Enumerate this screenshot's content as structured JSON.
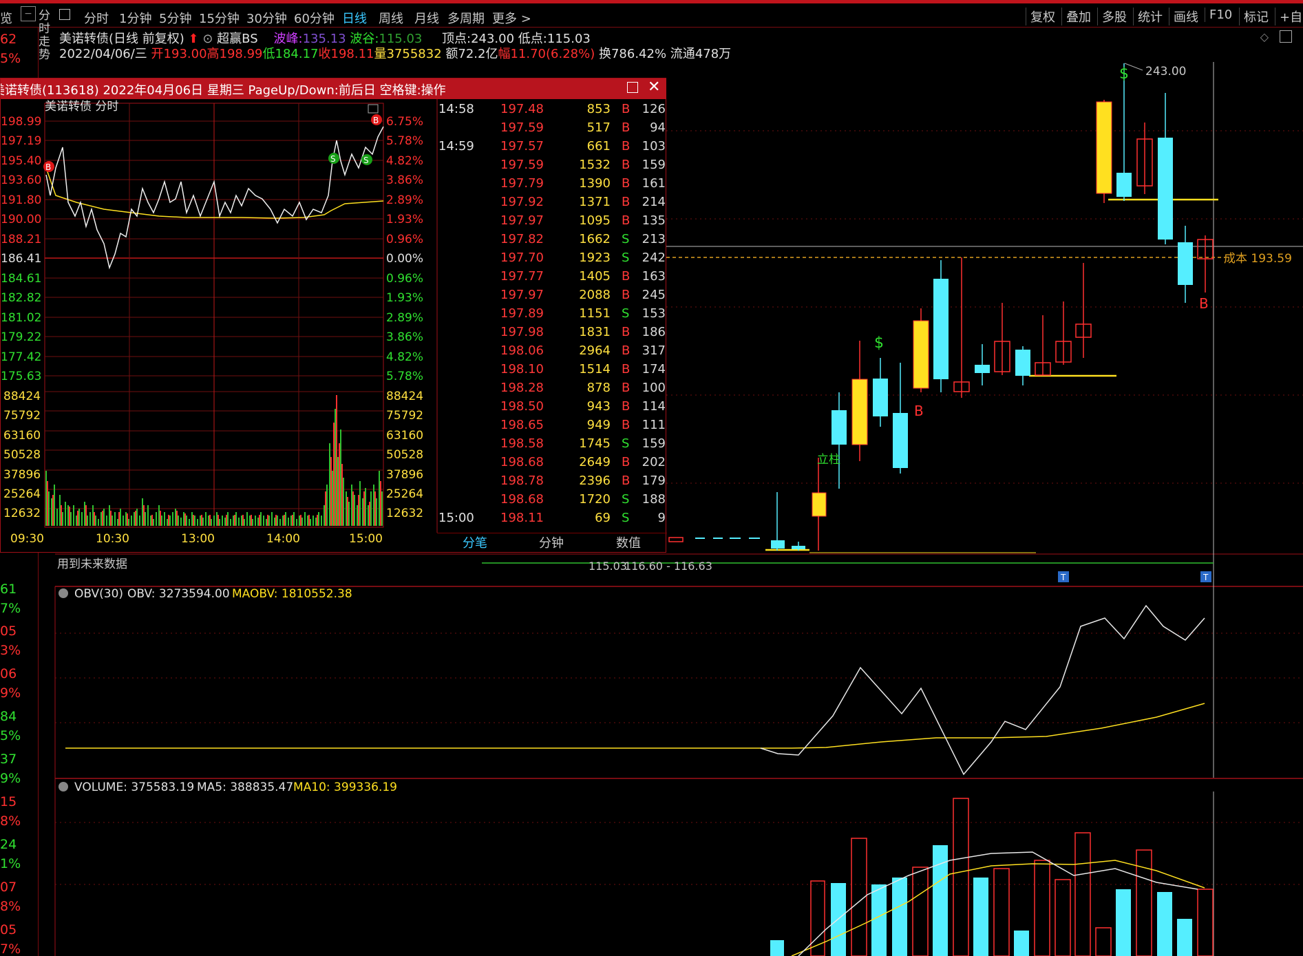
{
  "colors": {
    "accent": "#c0141c",
    "up": "#ff3030",
    "down": "#30e030",
    "cyan": "#3ac8ff",
    "yellow": "#ffe040",
    "bg": "#000000"
  },
  "toolbar": {
    "left_stub": "览",
    "side_label": "分时走势",
    "items": [
      "分时",
      "1分钟",
      "5分钟",
      "15分钟",
      "30分钟",
      "60分钟",
      "日线",
      "周线",
      "月线",
      "多周期",
      "更多 >"
    ],
    "active_item": "日线",
    "right_items": [
      "复权",
      "叠加",
      "多股",
      "统计",
      "画线",
      "F10",
      "标记",
      "+自选"
    ]
  },
  "left_strip": {
    "values": [
      "62",
      "5%",
      "61",
      "7%",
      "05",
      "3%",
      "06",
      "9%",
      "84",
      "5%",
      "37",
      "9%",
      "15",
      "8%",
      "24",
      "1%",
      "07",
      "8%",
      "05",
      "7%"
    ]
  },
  "header": {
    "name": "美诺转债(日线 前复权)",
    "indicator": "超赢BS",
    "peak_label": "波峰:",
    "peak_value": "135.13",
    "trough_label": "波谷:",
    "trough_value": "115.03",
    "top_label": "顶点:",
    "top_value": "243.00",
    "low_label": "低点:",
    "low_value": "115.03",
    "date": "2022/04/06/三",
    "open": "开193.00",
    "high": "高198.99",
    "low": "低184.17",
    "close": "收198.11",
    "volume": "量3755832",
    "amount": "额72.2亿",
    "change": "幅11.70(6.28%)",
    "turnover": "换786.42%",
    "float": "流通478万"
  },
  "kline": {
    "peak_label": "243.00",
    "cost_label": "成本 193.59",
    "low_label": "115.03",
    "range_label": "116.60 - 116.63",
    "future_note": "用到未来数据",
    "markers": [
      "$",
      "$",
      "B",
      "B",
      "立柱"
    ]
  },
  "obv_panel": {
    "title": "OBV(30)",
    "obv": "OBV: 3273594.00",
    "maobv": "MAOBV: 1810552.38"
  },
  "volume_panel": {
    "title": "VOLUME: 375583.19",
    "ma5": "MA5: 388835.47",
    "ma10": "MA10: 399336.19"
  },
  "popup": {
    "title": "美诺转债(113618) 2022年04月06日 星期三 PageUp/Down:前后日 空格键:操作",
    "chart_title": "美诺转债 分时",
    "price_labels": [
      "198.99",
      "197.19",
      "195.40",
      "193.60",
      "191.80",
      "190.00",
      "188.21",
      "186.41",
      "184.61",
      "182.82",
      "181.02",
      "179.22",
      "177.42",
      "175.63"
    ],
    "pct_labels": [
      "6.75%",
      "5.78%",
      "4.82%",
      "3.86%",
      "2.89%",
      "1.93%",
      "0.96%",
      "0.00%",
      "0.96%",
      "1.93%",
      "2.89%",
      "3.86%",
      "4.82%",
      "5.78%"
    ],
    "vol_labels": [
      "88424",
      "75792",
      "63160",
      "50528",
      "37896",
      "25264",
      "12632"
    ],
    "time_labels": [
      "09:30",
      "10:30",
      "13:00",
      "14:00",
      "15:00"
    ],
    "ticks": [
      {
        "time": "14:58",
        "price": "197.48",
        "vol": "853",
        "side": "B",
        "n": "126"
      },
      {
        "time": "",
        "price": "197.59",
        "vol": "517",
        "side": "B",
        "n": "94"
      },
      {
        "time": "14:59",
        "price": "197.57",
        "vol": "661",
        "side": "B",
        "n": "103"
      },
      {
        "time": "",
        "price": "197.59",
        "vol": "1532",
        "side": "B",
        "n": "159"
      },
      {
        "time": "",
        "price": "197.79",
        "vol": "1390",
        "side": "B",
        "n": "161"
      },
      {
        "time": "",
        "price": "197.92",
        "vol": "1371",
        "side": "B",
        "n": "214"
      },
      {
        "time": "",
        "price": "197.97",
        "vol": "1095",
        "side": "B",
        "n": "135"
      },
      {
        "time": "",
        "price": "197.82",
        "vol": "1662",
        "side": "S",
        "n": "213"
      },
      {
        "time": "",
        "price": "197.70",
        "vol": "1923",
        "side": "S",
        "n": "242"
      },
      {
        "time": "",
        "price": "197.77",
        "vol": "1405",
        "side": "B",
        "n": "163"
      },
      {
        "time": "",
        "price": "197.97",
        "vol": "2088",
        "side": "B",
        "n": "245"
      },
      {
        "time": "",
        "price": "197.89",
        "vol": "1151",
        "side": "S",
        "n": "153"
      },
      {
        "time": "",
        "price": "197.98",
        "vol": "1831",
        "side": "B",
        "n": "186"
      },
      {
        "time": "",
        "price": "198.06",
        "vol": "2964",
        "side": "B",
        "n": "317"
      },
      {
        "time": "",
        "price": "198.10",
        "vol": "1514",
        "side": "B",
        "n": "174"
      },
      {
        "time": "",
        "price": "198.28",
        "vol": "878",
        "side": "B",
        "n": "100"
      },
      {
        "time": "",
        "price": "198.50",
        "vol": "943",
        "side": "B",
        "n": "114"
      },
      {
        "time": "",
        "price": "198.65",
        "vol": "949",
        "side": "B",
        "n": "111"
      },
      {
        "time": "",
        "price": "198.58",
        "vol": "1745",
        "side": "S",
        "n": "159"
      },
      {
        "time": "",
        "price": "198.68",
        "vol": "2649",
        "side": "B",
        "n": "202"
      },
      {
        "time": "",
        "price": "198.78",
        "vol": "2396",
        "side": "B",
        "n": "179"
      },
      {
        "time": "",
        "price": "198.68",
        "vol": "1720",
        "side": "S",
        "n": "188"
      },
      {
        "time": "15:00",
        "price": "198.11",
        "vol": "69",
        "side": "S",
        "n": "9"
      }
    ],
    "tabs": [
      "分笔",
      "分钟",
      "数值"
    ],
    "active_tab": "分笔"
  }
}
